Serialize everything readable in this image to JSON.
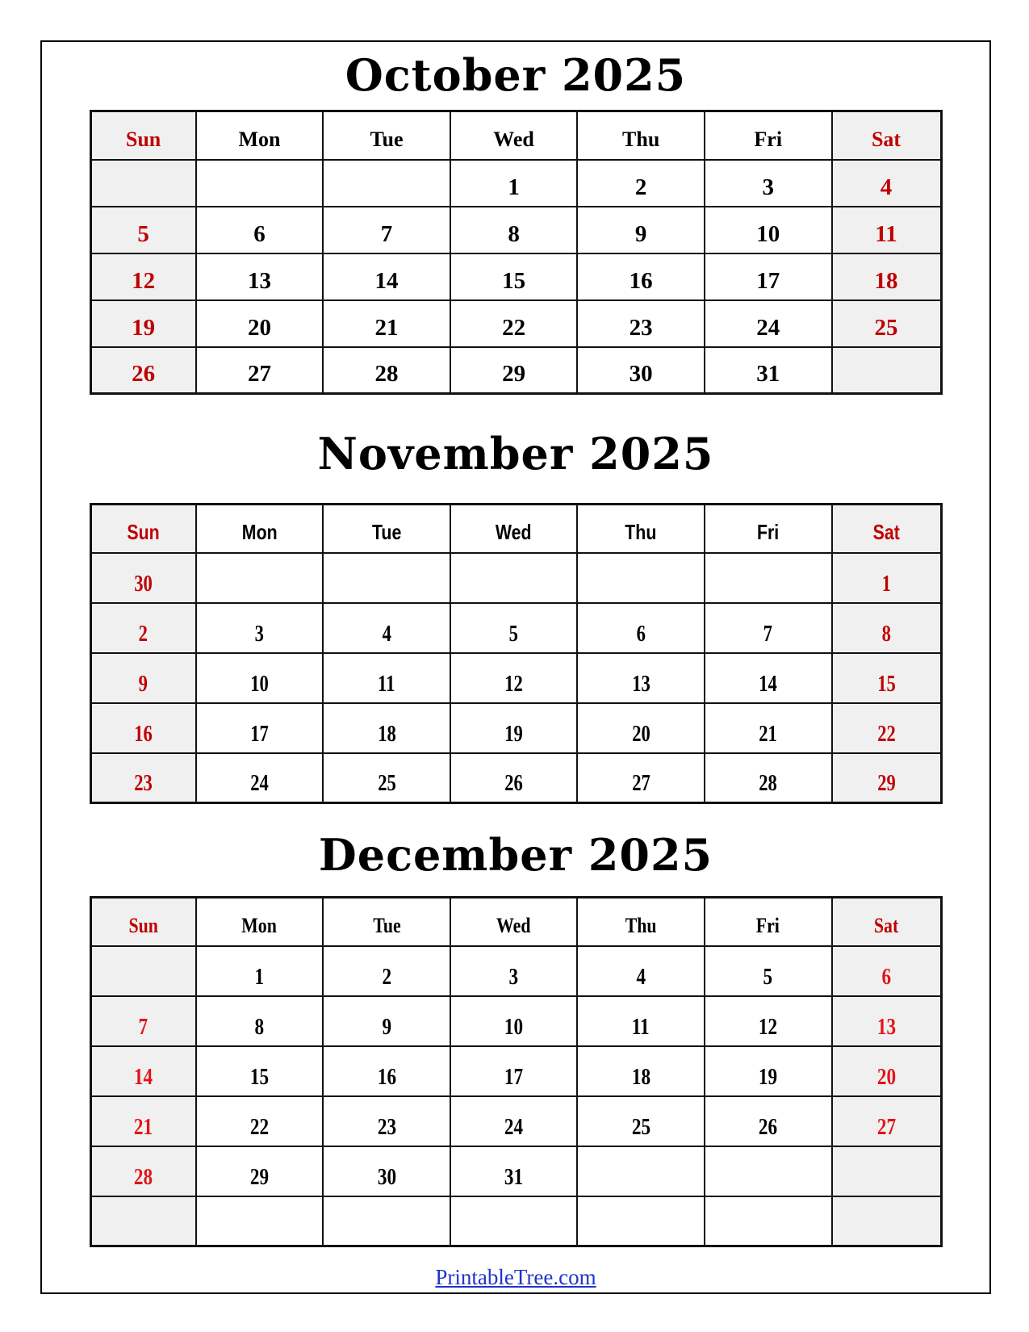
{
  "page": {
    "footer_link": "PrintableTree.com"
  },
  "calendar": {
    "day_headers": [
      "Sun",
      "Mon",
      "Tue",
      "Wed",
      "Thu",
      "Fri",
      "Sat"
    ],
    "months": [
      {
        "title": "October 2025",
        "grid": [
          [
            "",
            "",
            "",
            "1",
            "2",
            "3",
            "4"
          ],
          [
            "5",
            "6",
            "7",
            "8",
            "9",
            "10",
            "11"
          ],
          [
            "12",
            "13",
            "14",
            "15",
            "16",
            "17",
            "18"
          ],
          [
            "19",
            "20",
            "21",
            "22",
            "23",
            "24",
            "25"
          ],
          [
            "26",
            "27",
            "28",
            "29",
            "30",
            "31",
            ""
          ]
        ]
      },
      {
        "title": "November 2025",
        "grid": [
          [
            "30",
            "",
            "",
            "",
            "",
            "",
            "1"
          ],
          [
            "2",
            "3",
            "4",
            "5",
            "6",
            "7",
            "8"
          ],
          [
            "9",
            "10",
            "11",
            "12",
            "13",
            "14",
            "15"
          ],
          [
            "16",
            "17",
            "18",
            "19",
            "20",
            "21",
            "22"
          ],
          [
            "23",
            "24",
            "25",
            "26",
            "27",
            "28",
            "29"
          ]
        ]
      },
      {
        "title": "December 2025",
        "grid": [
          [
            "",
            "1",
            "2",
            "3",
            "4",
            "5",
            "6"
          ],
          [
            "7",
            "8",
            "9",
            "10",
            "11",
            "12",
            "13"
          ],
          [
            "14",
            "15",
            "16",
            "17",
            "18",
            "19",
            "20"
          ],
          [
            "21",
            "22",
            "23",
            "24",
            "25",
            "26",
            "27"
          ],
          [
            "28",
            "29",
            "30",
            "31",
            "",
            "",
            ""
          ],
          [
            "",
            "",
            "",
            "",
            "",
            "",
            ""
          ]
        ]
      }
    ],
    "colors": {
      "weekend_text": "#c00000",
      "december_weekend_text": "#e31417",
      "weekend_bg": "#f0f0f0",
      "link_blue": "#2033cc",
      "border_black": "#111111"
    }
  }
}
